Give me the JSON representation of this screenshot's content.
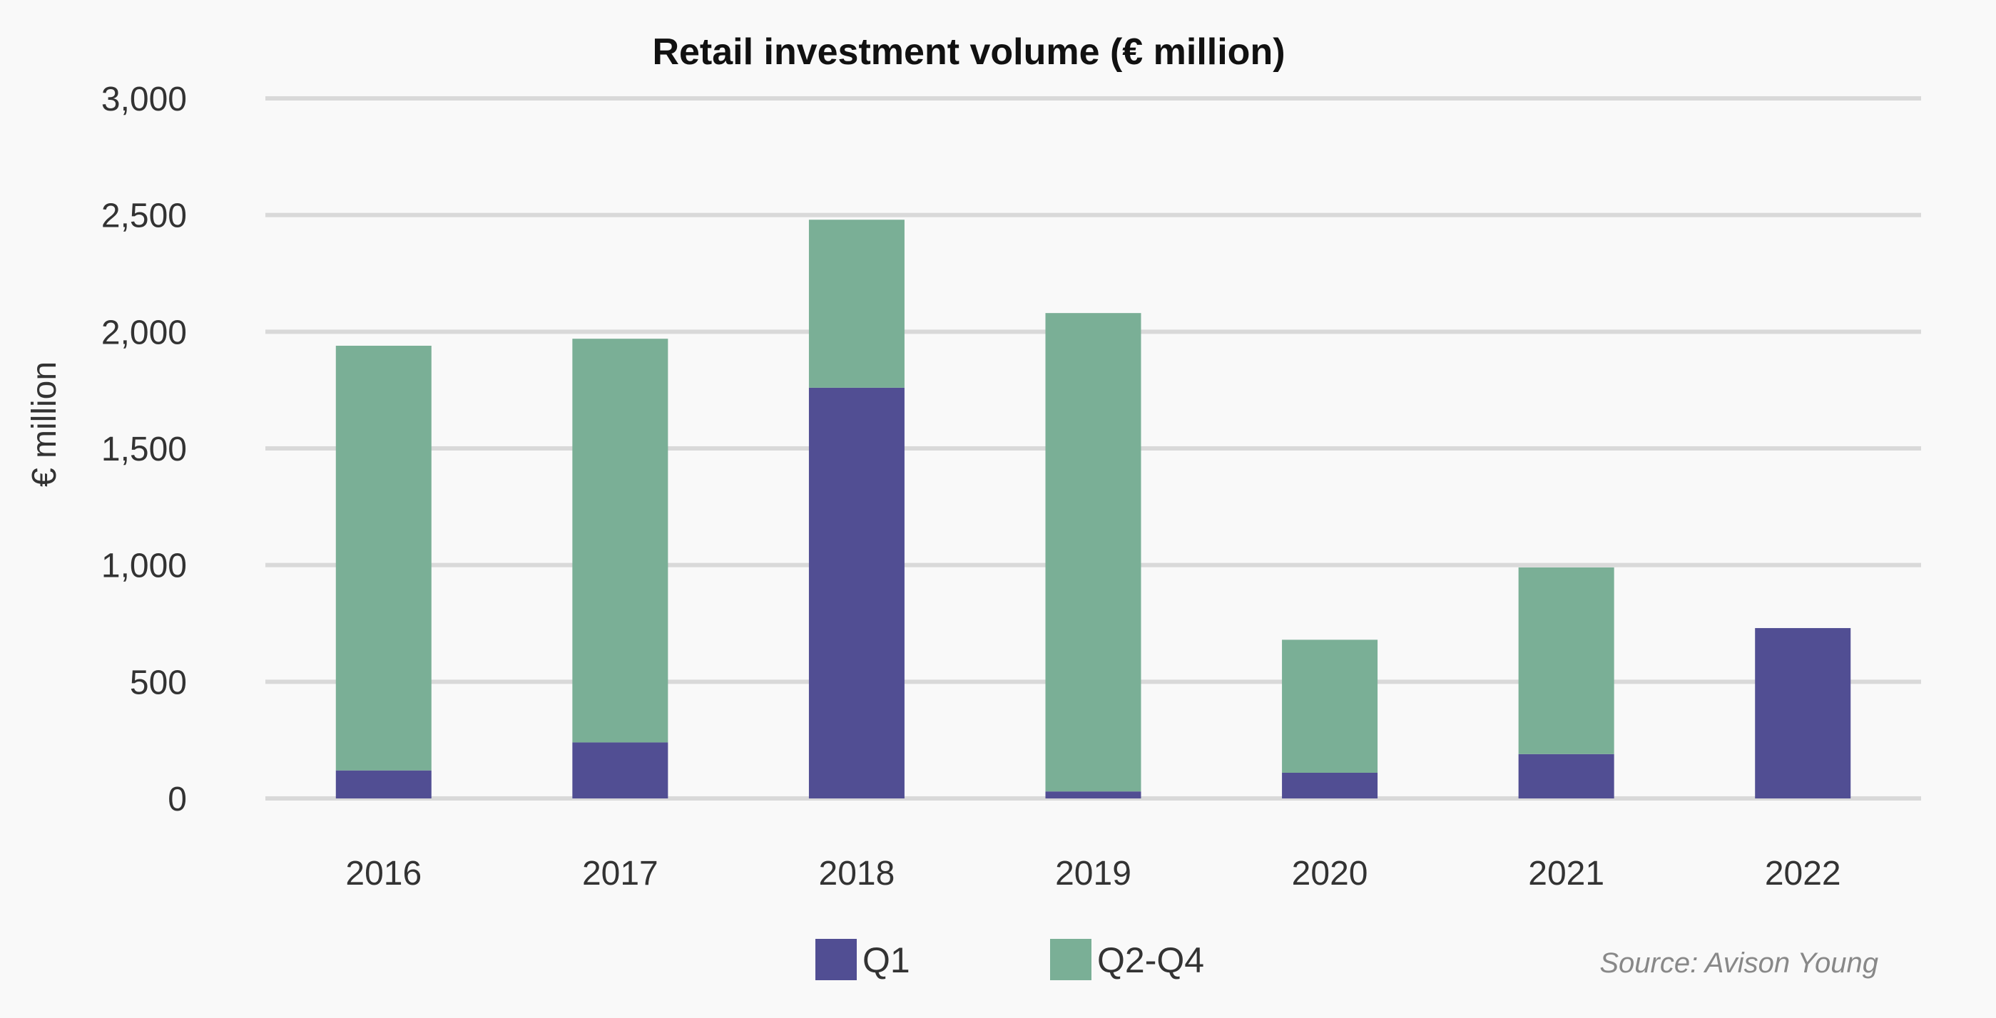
{
  "chart_data": {
    "type": "bar",
    "stacked": true,
    "title": "Retail investment volume (€ million)",
    "xlabel": "",
    "ylabel": "€ million",
    "ylim": [
      0,
      3000
    ],
    "yticks": [
      0,
      500,
      1000,
      1500,
      2000,
      2500,
      3000
    ],
    "ytick_labels": [
      "0",
      "500",
      "1,000",
      "1,500",
      "2,000",
      "2,500",
      "3,000"
    ],
    "categories": [
      "2016",
      "2017",
      "2018",
      "2019",
      "2020",
      "2021",
      "2022"
    ],
    "series": [
      {
        "name": "Q1",
        "color": "#514e93",
        "values": [
          120,
          240,
          1760,
          30,
          110,
          190,
          730
        ]
      },
      {
        "name": "Q2-Q4",
        "color": "#7aaf96",
        "values": [
          1820,
          1730,
          720,
          2050,
          570,
          800,
          0
        ]
      }
    ],
    "grid": true,
    "legend_position": "bottom",
    "source": "Source: Avison Young"
  }
}
